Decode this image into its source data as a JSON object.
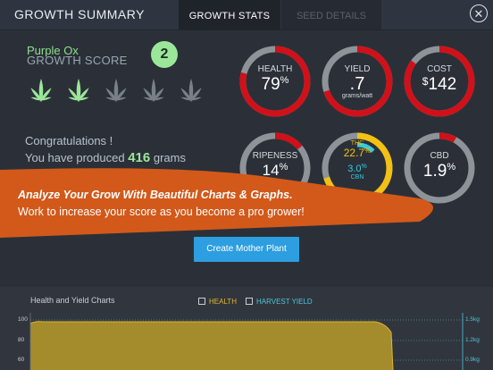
{
  "header": {
    "title": "GROWTH SUMMARY",
    "tabs": [
      {
        "label": "GROWTH STATS",
        "active": true
      },
      {
        "label": "SEED DETAILS",
        "active": false
      }
    ],
    "close_icon": "close-icon"
  },
  "summary": {
    "plant_name": "Purple Ox",
    "growth_label": "GROWTH SCORE",
    "score": "2",
    "leaves_total": 5,
    "leaves_filled": 2,
    "congrats": "Congratulations !",
    "produced_prefix": "You have produced",
    "produced_amount": "416",
    "produced_unit": "grams"
  },
  "stats": {
    "health": {
      "label": "HEALTH",
      "value": "79",
      "unit": "%",
      "fraction": 0.79
    },
    "yield": {
      "label": "YIELD",
      "value": ".7",
      "unit": "grams/watt",
      "fraction": 0.7
    },
    "cost": {
      "label": "COST",
      "prefix": "$",
      "value": "142",
      "fraction": 0.85
    },
    "ripeness": {
      "label": "RIPENESS",
      "value": "14",
      "unit": "%",
      "fraction": 0.14
    },
    "thc_cbn": {
      "thc_label": "THC",
      "thc_value": "22.7",
      "thc_unit": "%",
      "thc_fraction": 0.7,
      "cbn_value": "3.0",
      "cbn_unit": "%",
      "cbn_label": "CBN",
      "cbn_fraction": 0.12
    },
    "cbd": {
      "label": "CBD",
      "value": "1.9",
      "unit": "%",
      "fraction": 0.08
    }
  },
  "banner": {
    "line1": "Analyze Your Grow With Beautiful Charts & Graphs.",
    "line2": "Work to increase your score as you become a pro grower!"
  },
  "actions": {
    "create_mother": "Create Mother Plant"
  },
  "chart": {
    "title": "Health and Yield Charts",
    "legend": [
      {
        "label": "HEALTH",
        "color": "#e0b52e"
      },
      {
        "label": "HARVEST YIELD",
        "color": "#4fc3d9"
      }
    ],
    "left_ticks": [
      "100",
      "80",
      "60"
    ],
    "right_ticks": [
      "1.5kg",
      "1.2kg",
      "0.9kg"
    ]
  },
  "colors": {
    "ring_red": "#d0111a",
    "ring_gray": "#8e9399",
    "ring_yellow": "#f2c114",
    "ring_cyan": "#36c9e0",
    "banner_orange": "#d2591a",
    "green_text": "#9be79a",
    "button_blue": "#2d9ee0",
    "health_fill": "#b89a28"
  }
}
